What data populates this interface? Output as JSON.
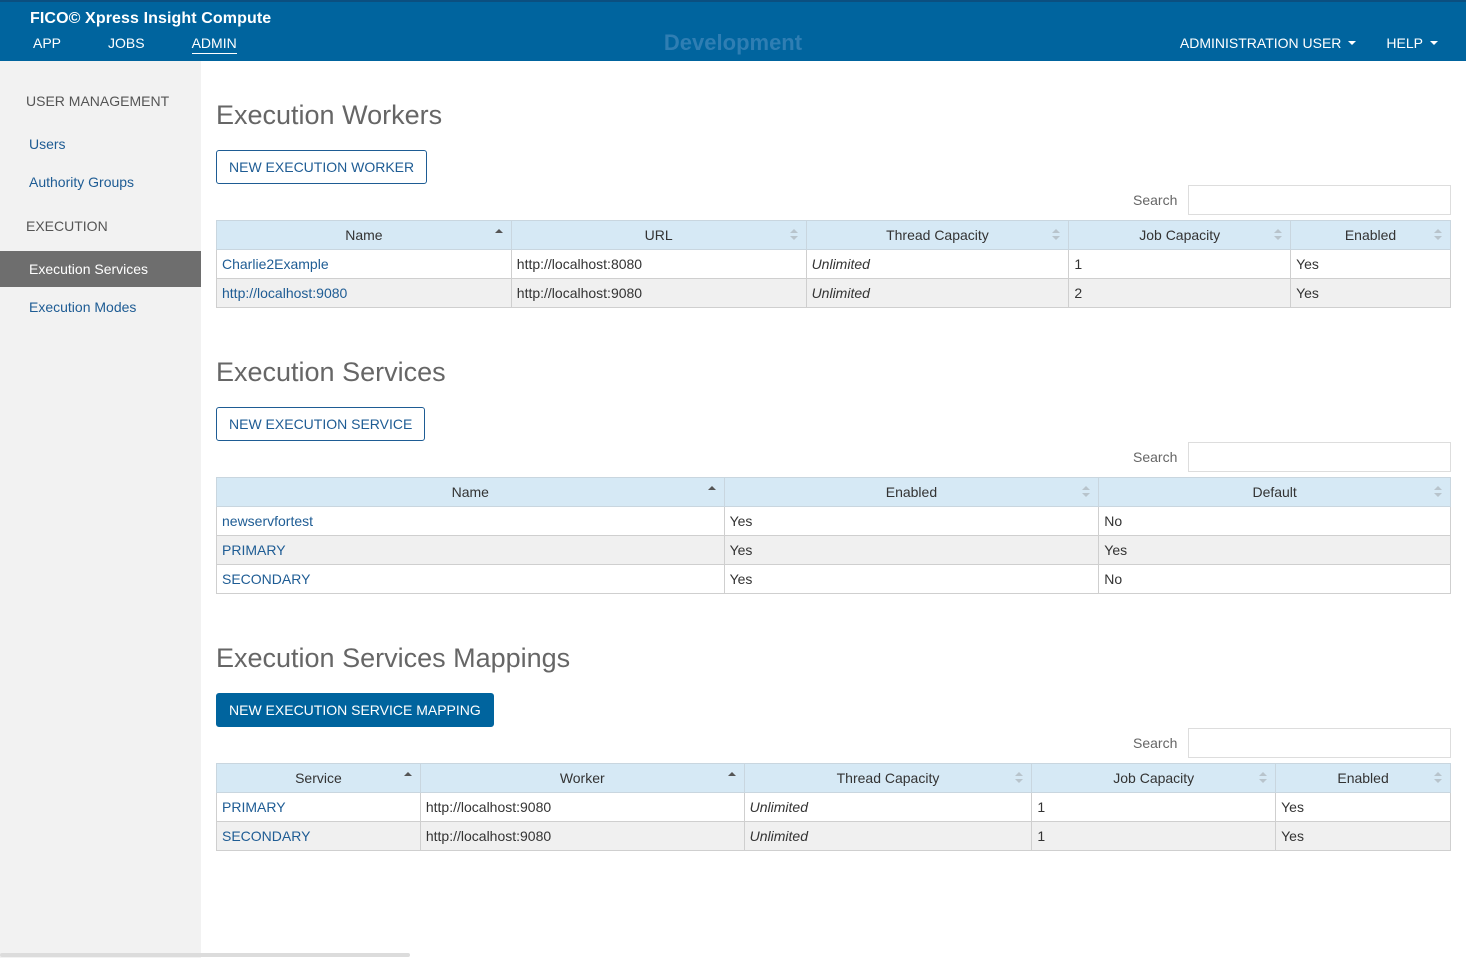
{
  "header": {
    "app_title": "FICO© Xpress Insight Compute",
    "nav": [
      "APP",
      "JOBS",
      "ADMIN"
    ],
    "environment": "Development",
    "user_menu": "ADMINISTRATION USER",
    "help_menu": "HELP",
    "colors": {
      "bar": "#00649e",
      "env_text": "#2f7eb3"
    }
  },
  "sidebar": {
    "section_user_management": "USER MANAGEMENT",
    "users": "Users",
    "authority_groups": "Authority Groups",
    "section_execution": "EXECUTION",
    "execution_services": "Execution Services",
    "execution_modes": "Execution Modes"
  },
  "workers": {
    "title": "Execution Workers",
    "new_button": "NEW EXECUTION WORKER",
    "search_label": "Search",
    "columns": [
      "Name",
      "URL",
      "Thread Capacity",
      "Job Capacity",
      "Enabled"
    ],
    "rows": [
      [
        "Charlie2Example",
        "http://localhost:8080",
        "Unlimited",
        "1",
        "Yes"
      ],
      [
        "http://localhost:9080",
        "http://localhost:9080",
        "Unlimited",
        "2",
        "Yes"
      ]
    ]
  },
  "services": {
    "title": "Execution Services",
    "new_button": "NEW EXECUTION SERVICE",
    "search_label": "Search",
    "columns": [
      "Name",
      "Enabled",
      "Default"
    ],
    "rows": [
      [
        "newservfortest",
        "Yes",
        "No"
      ],
      [
        "PRIMARY",
        "Yes",
        "Yes"
      ],
      [
        "SECONDARY",
        "Yes",
        "No"
      ]
    ]
  },
  "mappings": {
    "title": "Execution Services Mappings",
    "new_button": "NEW EXECUTION SERVICE MAPPING",
    "search_label": "Search",
    "columns": [
      "Service",
      "Worker",
      "Thread Capacity",
      "Job Capacity",
      "Enabled"
    ],
    "rows": [
      [
        "PRIMARY",
        "http://localhost:9080",
        "Unlimited",
        "1",
        "Yes"
      ],
      [
        "SECONDARY",
        "http://localhost:9080",
        "Unlimited",
        "1",
        "Yes"
      ]
    ]
  }
}
